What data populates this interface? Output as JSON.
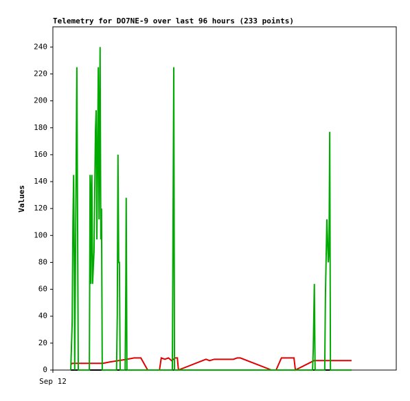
{
  "chart_data": {
    "type": "line",
    "title": "Telemetry for DO7NE-9 over last 96 hours (233 points)",
    "y_label": "Values",
    "xlim": [
      0,
      96
    ],
    "xticks": [
      {
        "value": 0,
        "label": "Sep 12"
      }
    ],
    "ylim": [
      0,
      255
    ],
    "yticks": [
      0,
      20,
      40,
      60,
      80,
      100,
      120,
      140,
      160,
      180,
      200,
      220,
      240
    ],
    "series": [
      {
        "color": "#000000",
        "x": [
          5.0,
          83.5
        ],
        "values": [
          0,
          0
        ]
      },
      {
        "color": "#e00000",
        "x": [
          5.0,
          5.4,
          14.0,
          15.9,
          20.7,
          22.7,
          24.6,
          26.5,
          29.8,
          30.3,
          31.3,
          32.3,
          33.2,
          34.2,
          34.8,
          35.1,
          42.8,
          43.8,
          45.1,
          50.5,
          51.5,
          52.4,
          61.1,
          62.4,
          63.9,
          67.4,
          67.8,
          73.0,
          73.5,
          83.5
        ],
        "values": [
          4,
          5,
          5,
          6,
          8,
          9,
          9,
          0,
          0,
          9,
          8,
          9,
          7,
          9,
          9,
          0,
          8,
          7,
          8,
          8,
          9,
          9,
          0,
          0,
          9,
          9,
          0,
          7,
          7,
          7
        ]
      },
      {
        "color": "#00aa00",
        "x": [
          5.0,
          5.4,
          5.6,
          5.8,
          6.0,
          6.1,
          6.7,
          6.9,
          7.1,
          10.2,
          10.4,
          10.6,
          10.8,
          10.9,
          11.1,
          11.5,
          11.9,
          12.1,
          12.3,
          12.7,
          12.9,
          13.2,
          13.4,
          13.6,
          13.8,
          17.8,
          18.0,
          18.2,
          18.4,
          18.6,
          18.8,
          20.2,
          20.4,
          20.5,
          20.7,
          33.4,
          33.6,
          33.8,
          34.0,
          72.6,
          72.8,
          73.0,
          73.1,
          73.3,
          76.0,
          76.2,
          76.6,
          77.0,
          77.2,
          77.4,
          77.6,
          83.5
        ],
        "values": [
          0,
          36,
          108,
          145,
          72,
          0,
          225,
          112,
          0,
          0,
          145,
          64,
          137,
          145,
          64,
          88,
          177,
          193,
          97,
          225,
          112,
          240,
          97,
          120,
          0,
          0,
          40,
          160,
          80,
          80,
          0,
          0,
          65,
          128,
          0,
          0,
          112,
          225,
          0,
          0,
          16,
          48,
          64,
          0,
          0,
          56,
          112,
          80,
          88,
          177,
          0,
          0
        ]
      }
    ]
  }
}
